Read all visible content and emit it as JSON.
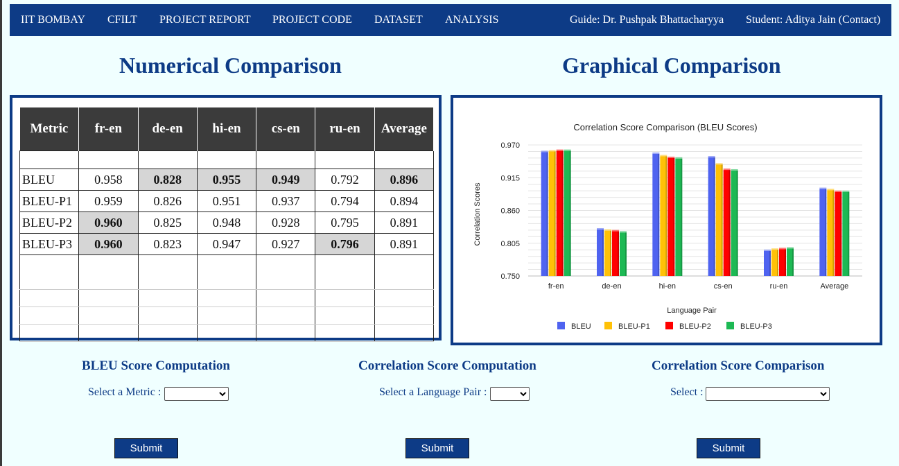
{
  "nav": {
    "items": [
      "IIT BOMBAY",
      "CFILT",
      "PROJECT REPORT",
      "PROJECT CODE",
      "DATASET",
      "ANALYSIS"
    ],
    "guide": "Guide: Dr. Pushpak Bhattacharyya",
    "student": "Student: Aditya Jain (Contact)"
  },
  "numerical_title": "Numerical Comparison",
  "graphical_title": "Graphical Comparison",
  "table": {
    "headers": [
      "Metric",
      "fr-en",
      "de-en",
      "hi-en",
      "cs-en",
      "ru-en",
      "Average"
    ],
    "rows": [
      {
        "label": "BLEU",
        "values": [
          "0.958",
          "0.828",
          "0.955",
          "0.949",
          "0.792",
          "0.896"
        ]
      },
      {
        "label": "BLEU-P1",
        "values": [
          "0.959",
          "0.826",
          "0.951",
          "0.937",
          "0.794",
          "0.894"
        ]
      },
      {
        "label": "BLEU-P2",
        "values": [
          "0.960",
          "0.825",
          "0.948",
          "0.928",
          "0.795",
          "0.891"
        ]
      },
      {
        "label": "BLEU-P3",
        "values": [
          "0.960",
          "0.823",
          "0.947",
          "0.927",
          "0.796",
          "0.891"
        ]
      }
    ]
  },
  "chart_data": {
    "type": "bar",
    "title": "Correlation Score Comparison (BLEU Scores)",
    "xlabel": "Language Pair",
    "ylabel": "Correlation Scores",
    "categories": [
      "fr-en",
      "de-en",
      "hi-en",
      "cs-en",
      "ru-en",
      "Average"
    ],
    "ylim": [
      0.75,
      0.97
    ],
    "yticks": [
      "0.970",
      "0.915",
      "0.860",
      "0.805",
      "0.750"
    ],
    "ytick_values": [
      0.97,
      0.915,
      0.86,
      0.805,
      0.75
    ],
    "grid": true,
    "legend": "bottom",
    "series": [
      {
        "name": "BLEU",
        "color": "#4f63f0",
        "values": [
          0.958,
          0.828,
          0.955,
          0.949,
          0.792,
          0.896
        ]
      },
      {
        "name": "BLEU-P1",
        "color": "#ffc107",
        "values": [
          0.959,
          0.826,
          0.951,
          0.937,
          0.794,
          0.894
        ]
      },
      {
        "name": "BLEU-P2",
        "color": "#ff0000",
        "values": [
          0.96,
          0.825,
          0.948,
          0.928,
          0.795,
          0.891
        ]
      },
      {
        "name": "BLEU-P3",
        "color": "#1db954",
        "values": [
          0.96,
          0.823,
          0.947,
          0.927,
          0.796,
          0.891
        ]
      }
    ]
  },
  "forms": {
    "bleu": {
      "title": "BLEU Score Computation",
      "label": "Select a Metric :",
      "submit": "Submit"
    },
    "corr": {
      "title": "Correlation Score Computation",
      "label": "Select a Language Pair :",
      "submit": "Submit"
    },
    "compare": {
      "title": "Correlation Score Comparison",
      "label": "Select :",
      "submit": "Submit"
    }
  },
  "colors": {
    "accent": "#0d3b86",
    "background": "#f0ffff",
    "highlight": "#d6d6d6"
  }
}
